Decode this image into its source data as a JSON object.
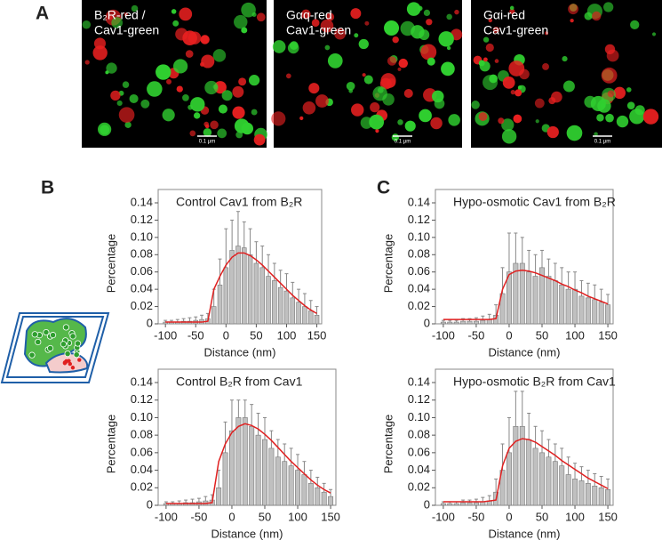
{
  "panels": {
    "a": "A",
    "b": "B",
    "c": "C"
  },
  "images": [
    {
      "lines": [
        "B₂R-red /",
        "Cav1-green"
      ],
      "scale_label": "0.1 μm"
    },
    {
      "lines": [
        "Gαq-red",
        "Cav1-green"
      ],
      "scale_label": "0.1 μm"
    },
    {
      "lines": [
        "Gαi-red",
        "Cav1-green"
      ],
      "scale_label": "0.1 μm"
    }
  ],
  "chart_data": [
    {
      "type": "bar",
      "title": "Control Cav1 from B₂R",
      "xlabel": "Distance (nm)",
      "ylabel": "Percentage",
      "color": "#c0c0c0",
      "fit_color": "#e02020",
      "x": [
        -100,
        -90,
        -80,
        -70,
        -60,
        -50,
        -40,
        -30,
        -20,
        -10,
        0,
        10,
        20,
        30,
        40,
        50,
        60,
        70,
        80,
        90,
        100,
        110,
        120,
        130,
        140,
        150
      ],
      "values": [
        0.002,
        0.002,
        0.002,
        0.003,
        0.003,
        0.004,
        0.005,
        0.006,
        0.02,
        0.045,
        0.065,
        0.085,
        0.09,
        0.088,
        0.08,
        0.07,
        0.065,
        0.055,
        0.05,
        0.042,
        0.038,
        0.03,
        0.025,
        0.02,
        0.015,
        0.01
      ],
      "errors": [
        0.002,
        0.002,
        0.003,
        0.003,
        0.004,
        0.004,
        0.005,
        0.006,
        0.02,
        0.03,
        0.045,
        0.035,
        0.04,
        0.03,
        0.03,
        0.025,
        0.025,
        0.025,
        0.02,
        0.02,
        0.02,
        0.018,
        0.015,
        0.015,
        0.012,
        0.01
      ],
      "fit": [
        0.002,
        0.002,
        0.002,
        0.002,
        0.002,
        0.002,
        0.002,
        0.003,
        0.04,
        0.055,
        0.068,
        0.077,
        0.082,
        0.082,
        0.079,
        0.074,
        0.068,
        0.061,
        0.054,
        0.047,
        0.04,
        0.033,
        0.027,
        0.021,
        0.016,
        0.012
      ],
      "xlim": [
        -112,
        158
      ],
      "xticks": [
        -100,
        -50,
        0,
        50,
        100,
        150
      ],
      "ylim": [
        0,
        0.14
      ],
      "yticks": [
        0,
        0.02,
        0.04,
        0.06,
        0.08,
        {
          "value": 0.1,
          "label": "0.10"
        },
        0.12,
        0.14
      ]
    },
    {
      "type": "bar",
      "title": "Hypo-osmotic Cav1 from B₂R",
      "xlabel": "Distance (nm)",
      "ylabel": "Percentage",
      "color": "#c0c0c0",
      "fit_color": "#e02020",
      "x": [
        -100,
        -90,
        -80,
        -70,
        -60,
        -50,
        -40,
        -30,
        -20,
        -10,
        0,
        10,
        20,
        30,
        40,
        50,
        60,
        70,
        80,
        90,
        100,
        110,
        120,
        130,
        140,
        150
      ],
      "values": [
        0.002,
        0.002,
        0.002,
        0.003,
        0.003,
        0.003,
        0.004,
        0.005,
        0.01,
        0.035,
        0.06,
        0.07,
        0.07,
        0.06,
        0.055,
        0.065,
        0.055,
        0.05,
        0.045,
        0.04,
        0.04,
        0.032,
        0.03,
        0.028,
        0.025,
        0.022
      ],
      "errors": [
        0.002,
        0.002,
        0.002,
        0.003,
        0.003,
        0.004,
        0.005,
        0.006,
        0.012,
        0.03,
        0.045,
        0.035,
        0.03,
        0.025,
        0.025,
        0.02,
        0.02,
        0.02,
        0.02,
        0.02,
        0.02,
        0.018,
        0.017,
        0.017,
        0.015,
        0.012
      ],
      "fit": [
        0.005,
        0.005,
        0.005,
        0.005,
        0.005,
        0.005,
        0.005,
        0.005,
        0.006,
        0.04,
        0.057,
        0.061,
        0.062,
        0.061,
        0.059,
        0.056,
        0.053,
        0.05,
        0.046,
        0.043,
        0.039,
        0.036,
        0.032,
        0.029,
        0.026,
        0.023
      ],
      "xlim": [
        -112,
        158
      ],
      "xticks": [
        -100,
        -50,
        0,
        50,
        100,
        150
      ],
      "ylim": [
        0,
        0.14
      ],
      "yticks": [
        0,
        0.02,
        0.04,
        0.06,
        0.08,
        {
          "value": 0.1,
          "label": "0.10"
        },
        0.12,
        0.14
      ]
    },
    {
      "type": "bar",
      "title": "Control  B₂R from Cav1",
      "xlabel": "Distance (nm)",
      "ylabel": "Percentage",
      "color": "#c0c0c0",
      "fit_color": "#e02020",
      "x": [
        -100,
        -90,
        -80,
        -70,
        -60,
        -50,
        -40,
        -30,
        -20,
        -10,
        0,
        10,
        20,
        30,
        40,
        50,
        60,
        70,
        80,
        90,
        100,
        110,
        120,
        130,
        140,
        150
      ],
      "values": [
        0.002,
        0.002,
        0.002,
        0.003,
        0.003,
        0.004,
        0.005,
        0.006,
        0.02,
        0.06,
        0.085,
        0.1,
        0.1,
        0.09,
        0.08,
        0.075,
        0.065,
        0.055,
        0.05,
        0.045,
        0.04,
        0.035,
        0.025,
        0.02,
        0.015,
        0.01
      ],
      "errors": [
        0.002,
        0.002,
        0.003,
        0.003,
        0.004,
        0.004,
        0.005,
        0.006,
        0.02,
        0.035,
        0.035,
        0.02,
        0.02,
        0.025,
        0.025,
        0.025,
        0.02,
        0.02,
        0.02,
        0.02,
        0.018,
        0.015,
        0.015,
        0.012,
        0.01,
        0.008
      ],
      "fit": [
        0.002,
        0.002,
        0.002,
        0.002,
        0.002,
        0.002,
        0.002,
        0.003,
        0.05,
        0.07,
        0.083,
        0.09,
        0.093,
        0.091,
        0.087,
        0.081,
        0.074,
        0.066,
        0.058,
        0.05,
        0.043,
        0.036,
        0.029,
        0.023,
        0.018,
        0.014
      ],
      "xlim": [
        -112,
        158
      ],
      "xticks": [
        -100,
        -50,
        0,
        50,
        100,
        150
      ],
      "ylim": [
        0,
        0.14
      ],
      "yticks": [
        0,
        0.02,
        0.04,
        0.06,
        0.08,
        {
          "value": 0.1,
          "label": "0.10"
        },
        0.12,
        0.14
      ]
    },
    {
      "type": "bar",
      "title": "Hypo-osmotic B₂R from Cav1",
      "xlabel": "Distance (nm)",
      "ylabel": "Percentage",
      "color": "#c0c0c0",
      "fit_color": "#e02020",
      "x": [
        -100,
        -90,
        -80,
        -70,
        -60,
        -50,
        -40,
        -30,
        -20,
        -10,
        0,
        10,
        20,
        30,
        40,
        50,
        60,
        70,
        80,
        90,
        100,
        110,
        120,
        130,
        140,
        150
      ],
      "values": [
        0.002,
        0.002,
        0.002,
        0.003,
        0.003,
        0.003,
        0.004,
        0.005,
        0.015,
        0.04,
        0.06,
        0.09,
        0.09,
        0.075,
        0.065,
        0.06,
        0.055,
        0.05,
        0.045,
        0.035,
        0.03,
        0.028,
        0.025,
        0.022,
        0.02,
        0.018
      ],
      "errors": [
        0.002,
        0.002,
        0.002,
        0.003,
        0.003,
        0.004,
        0.005,
        0.006,
        0.015,
        0.03,
        0.04,
        0.04,
        0.04,
        0.03,
        0.025,
        0.025,
        0.02,
        0.02,
        0.02,
        0.02,
        0.018,
        0.016,
        0.015,
        0.014,
        0.013,
        0.012
      ],
      "fit": [
        0.004,
        0.004,
        0.004,
        0.004,
        0.004,
        0.004,
        0.004,
        0.005,
        0.006,
        0.045,
        0.065,
        0.073,
        0.076,
        0.075,
        0.072,
        0.067,
        0.062,
        0.057,
        0.051,
        0.046,
        0.041,
        0.036,
        0.031,
        0.027,
        0.023,
        0.019
      ],
      "xlim": [
        -112,
        158
      ],
      "xticks": [
        -100,
        -50,
        0,
        50,
        100,
        150
      ],
      "ylim": [
        0,
        0.14
      ],
      "yticks": [
        0,
        0.02,
        0.04,
        0.06,
        0.08,
        {
          "value": 0.1,
          "label": "0.10"
        },
        0.12,
        0.14
      ]
    }
  ]
}
